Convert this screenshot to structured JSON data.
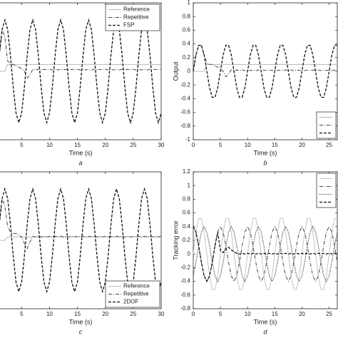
{
  "chart_data": [
    {
      "type": "line",
      "xlabel": "Time (s)",
      "caption": "a",
      "x": [
        1,
        1.5,
        2,
        2.5,
        3,
        3.5,
        4,
        4.5,
        5,
        5.5,
        6,
        6.5,
        7,
        7.5,
        8,
        8.5,
        9,
        9.5,
        10,
        10.5,
        11,
        11.5,
        12,
        12.5,
        13,
        13.5,
        14,
        14.5,
        15,
        15.5,
        16,
        16.5,
        17,
        17.5,
        18,
        18.5,
        19,
        19.5,
        20,
        20.5,
        21,
        21.5,
        22,
        22.5,
        23,
        23.5,
        24,
        24.5,
        25,
        25.5,
        26,
        26.5,
        27,
        27.5,
        28,
        28.5,
        29,
        29.5,
        30
      ],
      "xlim": [
        1,
        30
      ],
      "xticks": [
        5,
        10,
        15,
        20,
        25,
        30
      ],
      "ylim": [
        -1,
        1
      ],
      "legend": "upper right",
      "series": [
        {
          "name": "Reference",
          "color": "#b8b8b8",
          "dash": "solid",
          "values": [
            0,
            0,
            0,
            0.1,
            0.1,
            0.1,
            0.1,
            0.1,
            0.1,
            0.1,
            0.1,
            0.1,
            0.1,
            0.1,
            0.1,
            0.1,
            0.1,
            0.1,
            0.1,
            0.1,
            0.1,
            0.1,
            0.1,
            0.1,
            0.1,
            0.1,
            0.1,
            0.1,
            0.1,
            0.1,
            0.1,
            0.1,
            0.1,
            0.1,
            0.1,
            0.1,
            0.1,
            0.1,
            0.1,
            0.1,
            0.1,
            0.1,
            0.1,
            0.1,
            0.1,
            0.1,
            0.1,
            0.1,
            0.1,
            0.1,
            0.1,
            0.1,
            0.1,
            0.1,
            0.1,
            0.1,
            0.1,
            0.1,
            0.1
          ]
        },
        {
          "name": "Repetitive",
          "color": "#444444",
          "dash": "dashdot",
          "values": [
            0.23,
            0.61,
            0.5,
            0.15,
            0.1,
            0.1,
            0.08,
            0.06,
            0.04,
            0,
            -0.1,
            -0.05,
            0.03,
            0.02,
            0.03,
            0.02,
            0.03,
            0.02,
            0.03,
            0.02,
            0.03,
            0.02,
            0.03,
            0.02,
            0.03,
            0.02,
            0.03,
            0.02,
            0.03,
            0.02,
            0.03,
            0.02,
            0.03,
            0.02,
            0.03,
            0.02,
            0.03,
            0.02,
            0.03,
            0.02,
            0.03,
            0.02,
            0.03,
            0.02,
            0.03,
            0.02,
            0.03,
            0.02,
            0.03,
            0.02,
            0.03,
            0.02,
            0.03,
            0.02,
            0.03,
            0.02,
            0.03,
            0.02,
            0.03
          ]
        },
        {
          "name": "FSP",
          "color": "#111111",
          "dash": "dashed",
          "values": [
            0.23,
            0.61,
            0.75,
            0.61,
            0.23,
            -0.23,
            -0.61,
            -0.75,
            -0.61,
            -0.23,
            0.23,
            0.61,
            0.75,
            0.61,
            0.23,
            -0.23,
            -0.61,
            -0.75,
            -0.61,
            -0.23,
            0.23,
            0.61,
            0.75,
            0.61,
            0.23,
            -0.23,
            -0.61,
            -0.75,
            -0.61,
            -0.23,
            0.23,
            0.61,
            0.75,
            0.61,
            0.23,
            -0.23,
            -0.61,
            -0.75,
            -0.61,
            -0.23,
            0.23,
            0.61,
            0.75,
            0.61,
            0.23,
            -0.23,
            -0.61,
            -0.75,
            -0.61,
            -0.23,
            0.23,
            0.61,
            0.75,
            0.61,
            0.23,
            -0.23,
            -0.61,
            -0.75,
            -0.61
          ]
        }
      ]
    },
    {
      "type": "line",
      "xlabel": "Time (s)",
      "ylabel": "Output",
      "caption": "b",
      "x": [
        0,
        0.5,
        1,
        1.5,
        2,
        2.5,
        3,
        3.5,
        4,
        4.5,
        5,
        5.5,
        6,
        6.5,
        7,
        7.5,
        8,
        8.5,
        9,
        9.5,
        10,
        10.5,
        11,
        11.5,
        12,
        12.5,
        13,
        13.5,
        14,
        14.5,
        15,
        15.5,
        16,
        16.5,
        17,
        17.5,
        18,
        18.5,
        19,
        19.5,
        20,
        20.5,
        21,
        21.5,
        22,
        22.5,
        23,
        23.5,
        24,
        24.5,
        25,
        25.5,
        26,
        26.5
      ],
      "xlim": [
        0,
        26.5
      ],
      "xticks": [
        0,
        5,
        10,
        15,
        20,
        25
      ],
      "ylim": [
        -1,
        1
      ],
      "yticks": [
        -1,
        -0.8,
        -0.6,
        -0.4,
        -0.2,
        0,
        0.2,
        0.4,
        0.6,
        0.8,
        1
      ],
      "legend": "lower right",
      "series": [
        {
          "color": "#b8b8b8",
          "dash": "solid",
          "values": [
            0,
            0,
            0,
            0,
            0,
            0.1,
            0.1,
            0.1,
            0.1,
            0.1,
            0.1,
            0.1,
            0.1,
            0.1,
            0.1,
            0.1,
            0.1,
            0.1,
            0.1,
            0.1,
            0.1,
            0.1,
            0.1,
            0.1,
            0.1,
            0.1,
            0.1,
            0.1,
            0.1,
            0.1,
            0.1,
            0.1,
            0.1,
            0.1,
            0.1,
            0.1,
            0.1,
            0.1,
            0.1,
            0.1,
            0.1,
            0.1,
            0.1,
            0.1,
            0.1,
            0.1,
            0.1,
            0.1,
            0.1,
            0.1,
            0.1,
            0.1,
            0.1,
            0.1
          ]
        },
        {
          "color": "#444444",
          "dash": "dashdot",
          "values": [
            0,
            0.24,
            0.38,
            0.38,
            0.24,
            0.12,
            0.1,
            0.1,
            0.08,
            0.06,
            0.04,
            0,
            -0.08,
            -0.04,
            0.02,
            0.01,
            0.02,
            0.01,
            0.02,
            0.01,
            0.02,
            0.01,
            0.02,
            0.01,
            0.02,
            0.01,
            0.02,
            0.01,
            0.02,
            0.01,
            0.02,
            0.01,
            0.02,
            0.01,
            0.02,
            0.01,
            0.02,
            0.01,
            0.02,
            0.01,
            0.02,
            0.01,
            0.02,
            0.01,
            0.02,
            0.01,
            0.02,
            0.01,
            0.02,
            0.01,
            0.02,
            0.01,
            0.02,
            0.01
          ]
        },
        {
          "color": "#111111",
          "dash": "dashed",
          "values": [
            0,
            0.24,
            0.38,
            0.38,
            0.24,
            0,
            -0.24,
            -0.38,
            -0.38,
            -0.24,
            0,
            0.24,
            0.38,
            0.38,
            0.24,
            0,
            -0.24,
            -0.38,
            -0.38,
            -0.24,
            0,
            0.24,
            0.38,
            0.38,
            0.24,
            0,
            -0.24,
            -0.38,
            -0.38,
            -0.24,
            0,
            0.24,
            0.38,
            0.38,
            0.24,
            0,
            -0.24,
            -0.38,
            -0.38,
            -0.24,
            0,
            0.24,
            0.38,
            0.38,
            0.24,
            0,
            -0.24,
            -0.38,
            -0.38,
            -0.24,
            0,
            0.24,
            0.38,
            0.38
          ]
        }
      ]
    },
    {
      "type": "line",
      "xlabel": "Time (s)",
      "caption": "c",
      "x": [
        1,
        1.5,
        2,
        2.5,
        3,
        3.5,
        4,
        4.5,
        5,
        5.5,
        6,
        6.5,
        7,
        7.5,
        8,
        8.5,
        9,
        9.5,
        10,
        10.5,
        11,
        11.5,
        12,
        12.5,
        13,
        13.5,
        14,
        14.5,
        15,
        15.5,
        16,
        16.5,
        17,
        17.5,
        18,
        18.5,
        19,
        19.5,
        20,
        20.5,
        21,
        21.5,
        22,
        22.5,
        23,
        23.5,
        24,
        24.5,
        25,
        25.5,
        26,
        26.5,
        27,
        27.5,
        28,
        28.5,
        29,
        29.5,
        30
      ],
      "xlim": [
        1,
        30
      ],
      "xticks": [
        5,
        10,
        15,
        20,
        25,
        30
      ],
      "ylim": [
        -1,
        1
      ],
      "legend": "lower right",
      "series": [
        {
          "name": "Reference",
          "color": "#b8b8b8",
          "dash": "solid",
          "values": [
            0,
            0,
            0,
            0.05,
            0.05,
            0.05,
            0.05,
            0.05,
            0.05,
            0.05,
            0.05,
            0.05,
            0.05,
            0.05,
            0.05,
            0.05,
            0.05,
            0.05,
            0.05,
            0.05,
            0.05,
            0.05,
            0.05,
            0.05,
            0.05,
            0.05,
            0.05,
            0.05,
            0.05,
            0.05,
            0.05,
            0.05,
            0.05,
            0.05,
            0.05,
            0.05,
            0.05,
            0.05,
            0.05,
            0.05,
            0.05,
            0.05,
            0.05,
            0.05,
            0.05,
            0.05,
            0.05,
            0.05,
            0.05,
            0.05,
            0.05,
            0.05,
            0.05,
            0.05,
            0.05,
            0.05,
            0.05,
            0.05,
            0.05
          ]
        },
        {
          "name": "Repetitive",
          "color": "#444444",
          "dash": "dashdot",
          "values": [
            0.23,
            0.61,
            0.5,
            0.2,
            0.12,
            0.1,
            0.1,
            0.08,
            0.05,
            -0.05,
            -0.12,
            -0.02,
            0.06,
            0.05,
            0.06,
            0.05,
            0.06,
            0.05,
            0.06,
            0.05,
            0.06,
            0.05,
            0.06,
            0.05,
            0.06,
            0.05,
            0.06,
            0.05,
            0.06,
            0.05,
            0.06,
            0.05,
            0.06,
            0.05,
            0.06,
            0.05,
            0.06,
            0.05,
            0.06,
            0.05,
            0.06,
            0.05,
            0.06,
            0.05,
            0.06,
            0.05,
            0.06,
            0.05,
            0.06,
            0.05,
            0.06,
            0.05,
            0.06,
            0.05,
            0.06,
            0.05,
            0.06,
            0.05,
            0.06
          ]
        },
        {
          "name": "2DOF",
          "color": "#111111",
          "dash": "dashed",
          "values": [
            0.23,
            0.61,
            0.75,
            0.61,
            0.23,
            -0.23,
            -0.61,
            -0.75,
            -0.61,
            -0.23,
            0.23,
            0.61,
            0.75,
            0.61,
            0.23,
            -0.23,
            -0.61,
            -0.75,
            -0.61,
            -0.23,
            0.23,
            0.61,
            0.75,
            0.61,
            0.23,
            -0.23,
            -0.61,
            -0.75,
            -0.61,
            -0.23,
            0.23,
            0.61,
            0.75,
            0.61,
            0.23,
            -0.23,
            -0.61,
            -0.75,
            -0.61,
            -0.23,
            0.23,
            0.61,
            0.75,
            0.61,
            0.23,
            -0.23,
            -0.61,
            -0.75,
            -0.61,
            -0.23,
            0.23,
            0.61,
            0.75,
            0.61,
            0.23,
            -0.23,
            -0.61,
            -0.75,
            -0.61
          ]
        }
      ]
    },
    {
      "type": "line",
      "xlabel": "Time (s)",
      "ylabel": "Tracking error",
      "caption": "d",
      "x": [
        0,
        0.5,
        1,
        1.5,
        2,
        2.5,
        3,
        3.5,
        4,
        4.5,
        5,
        5.5,
        6,
        6.5,
        7,
        7.5,
        8,
        8.5,
        9,
        9.5,
        10,
        10.5,
        11,
        11.5,
        12,
        12.5,
        13,
        13.5,
        14,
        14.5,
        15,
        15.5,
        16,
        16.5,
        17,
        17.5,
        18,
        18.5,
        19,
        19.5,
        20,
        20.5,
        21,
        21.5,
        22,
        22.5,
        23,
        23.5,
        24,
        24.5,
        25,
        25.5,
        26,
        26.5
      ],
      "xlim": [
        0,
        26.5
      ],
      "xticks": [
        0,
        5,
        10,
        15,
        20,
        25
      ],
      "ylim": [
        -0.8,
        1.2
      ],
      "yticks": [
        -0.8,
        -0.6,
        -0.4,
        -0.2,
        0,
        0.2,
        0.4,
        0.6,
        0.8,
        1,
        1.2
      ],
      "legend": "upper right",
      "series": [
        {
          "color": "#c4c4c4",
          "dash": "solid",
          "values": [
            0,
            0.32,
            0.52,
            0.52,
            0.32,
            0,
            -0.32,
            -0.52,
            -0.52,
            -0.32,
            0,
            0.32,
            0.52,
            0.52,
            0.32,
            0,
            -0.32,
            -0.52,
            -0.52,
            -0.32,
            0,
            0.32,
            0.52,
            0.52,
            0.32,
            0,
            -0.32,
            -0.52,
            -0.52,
            -0.32,
            0,
            0.32,
            0.52,
            0.52,
            0.32,
            0,
            -0.32,
            -0.52,
            -0.52,
            -0.32,
            0,
            0.32,
            0.52,
            0.52,
            0.32,
            0,
            -0.32,
            -0.52,
            -0.52,
            -0.32,
            0,
            0.32,
            0.52,
            0.52
          ]
        },
        {
          "color": "#444444",
          "dash": "dashdot",
          "values": [
            0.4,
            0.32,
            0.12,
            -0.12,
            -0.32,
            -0.4,
            -0.32,
            -0.12,
            0.12,
            0.32,
            0.4,
            0.32,
            0.12,
            -0.12,
            -0.32,
            -0.4,
            -0.32,
            -0.12,
            0.12,
            0.32,
            0.4,
            0.32,
            0.12,
            -0.12,
            -0.32,
            -0.4,
            -0.32,
            -0.12,
            0.12,
            0.32,
            0.4,
            0.32,
            0.12,
            -0.12,
            -0.32,
            -0.4,
            -0.32,
            -0.12,
            0.12,
            0.32,
            0.4,
            0.32,
            0.12,
            -0.12,
            -0.32,
            -0.4,
            -0.32,
            -0.12,
            0.12,
            0.32,
            0.4,
            0.32,
            0.12,
            -0.12
          ]
        },
        {
          "color": "#333333",
          "dash": "dotted",
          "values": [
            -0.32,
            -0.12,
            0.12,
            0.32,
            0.4,
            0.32,
            0.12,
            -0.12,
            -0.32,
            -0.4,
            -0.32,
            -0.12,
            0.12,
            0.32,
            0.4,
            0.32,
            0.12,
            -0.12,
            -0.32,
            -0.4,
            -0.32,
            -0.12,
            0.12,
            0.32,
            0.4,
            0.32,
            0.12,
            -0.12,
            -0.32,
            -0.4,
            -0.32,
            -0.12,
            0.12,
            0.32,
            0.4,
            0.32,
            0.12,
            -0.12,
            -0.32,
            -0.4,
            -0.32,
            -0.12,
            0.12,
            0.32,
            0.4,
            0.32,
            0.12,
            -0.12,
            -0.32,
            -0.4,
            -0.32,
            -0.12,
            0.12,
            0.32
          ]
        },
        {
          "color": "#111111",
          "dash": "dashed",
          "values": [
            0.4,
            0.32,
            0.12,
            -0.12,
            -0.32,
            -0.4,
            -0.32,
            -0.12,
            0.12,
            0.32,
            0.05,
            0.02,
            0.08,
            0.1,
            0.06,
            0.03,
            0.01,
            0,
            0.01,
            0,
            0.01,
            0,
            0.01,
            0,
            0.01,
            0,
            0.01,
            0,
            0.01,
            0,
            0.01,
            0,
            0.01,
            0,
            0.01,
            0,
            0.01,
            0,
            0.01,
            0,
            0.01,
            0,
            0.01,
            0,
            0.01,
            0,
            0.01,
            0,
            0.01,
            0,
            0.01,
            0,
            0.01,
            0
          ]
        }
      ]
    }
  ]
}
